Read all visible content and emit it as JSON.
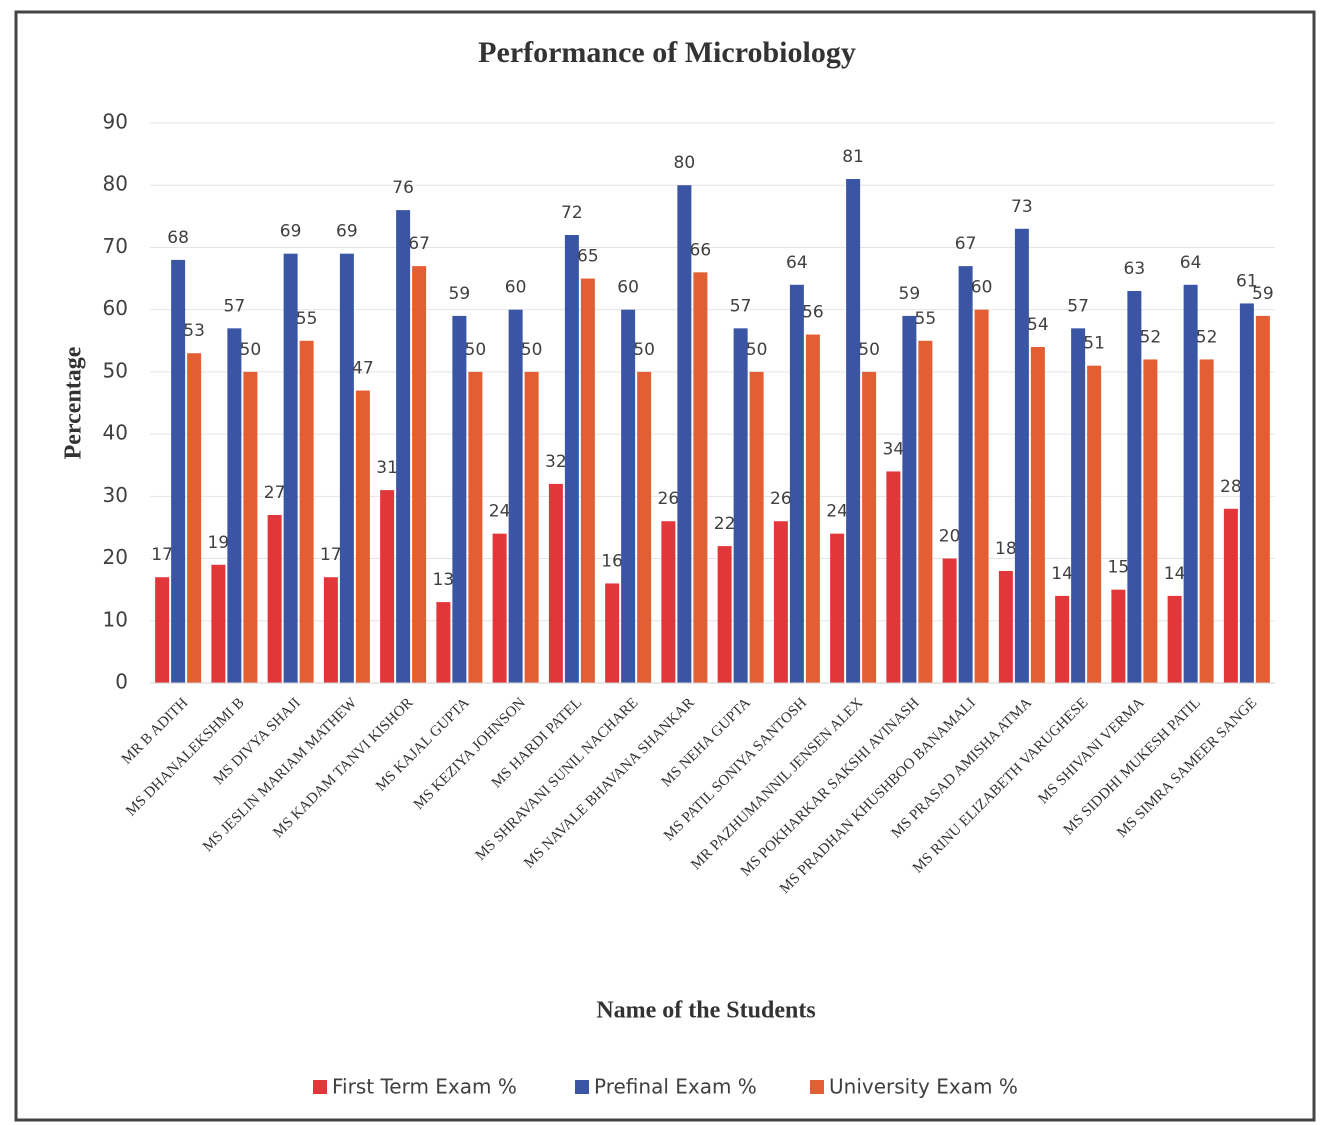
{
  "chart_data": {
    "type": "bar",
    "title": "Performance of Microbiology",
    "x_label": "Name of the Students",
    "y_label": "Percentage",
    "categories": [
      "MR B ADITH",
      "MS DHANALEKSHMI B",
      "MS DIVYA SHAJI",
      "MS JESLIN MARIAM MATHEW",
      "MS KADAM TANVI KISHOR",
      "MS KAJAL GUPTA",
      "MS KEZIYA JOHNSON",
      "MS HARDI PATEL",
      "MS SHRAVANI SUNIL NACHARE",
      "MS NAVALE BHAVANA SHANKAR",
      "MS NEHA GUPTA",
      "MS PATIL SONIYA SANTOSH",
      "MR PAZHUMANNIL JENSEN ALEX",
      "MS POKHARKAR SAKSHI AVINASH",
      "MS PRADHAN KHUSHBOO BANAMALI",
      "MS PRASAD AMISHA ATMA",
      "MS RINU ELIZABETH VARUGHESE",
      "MS SHIVANI VERMA",
      "MS SIDDHI MUKESH PATIL",
      "MS SIMRA SAMEER SANGE"
    ],
    "series": [
      {
        "name": "First Term Exam %",
        "color": "#e2373a",
        "values": [
          17,
          19,
          27,
          17,
          31,
          13,
          24,
          32,
          16,
          26,
          22,
          26,
          24,
          34,
          20,
          18,
          14,
          15,
          14,
          28
        ]
      },
      {
        "name": "Prefinal Exam %",
        "color": "#3a55a3",
        "values": [
          68,
          57,
          69,
          69,
          76,
          59,
          60,
          72,
          60,
          80,
          57,
          64,
          81,
          59,
          67,
          73,
          57,
          63,
          64,
          61
        ]
      },
      {
        "name": "University Exam %",
        "color": "#e35f33",
        "values": [
          53,
          50,
          55,
          47,
          67,
          50,
          50,
          65,
          50,
          66,
          50,
          56,
          50,
          55,
          60,
          54,
          51,
          52,
          52,
          59
        ]
      }
    ],
    "ylim": [
      0,
      90
    ],
    "yticks": [
      0,
      10,
      20,
      30,
      40,
      50,
      60,
      70,
      80,
      90
    ],
    "grid": true,
    "legend": "bottom"
  }
}
